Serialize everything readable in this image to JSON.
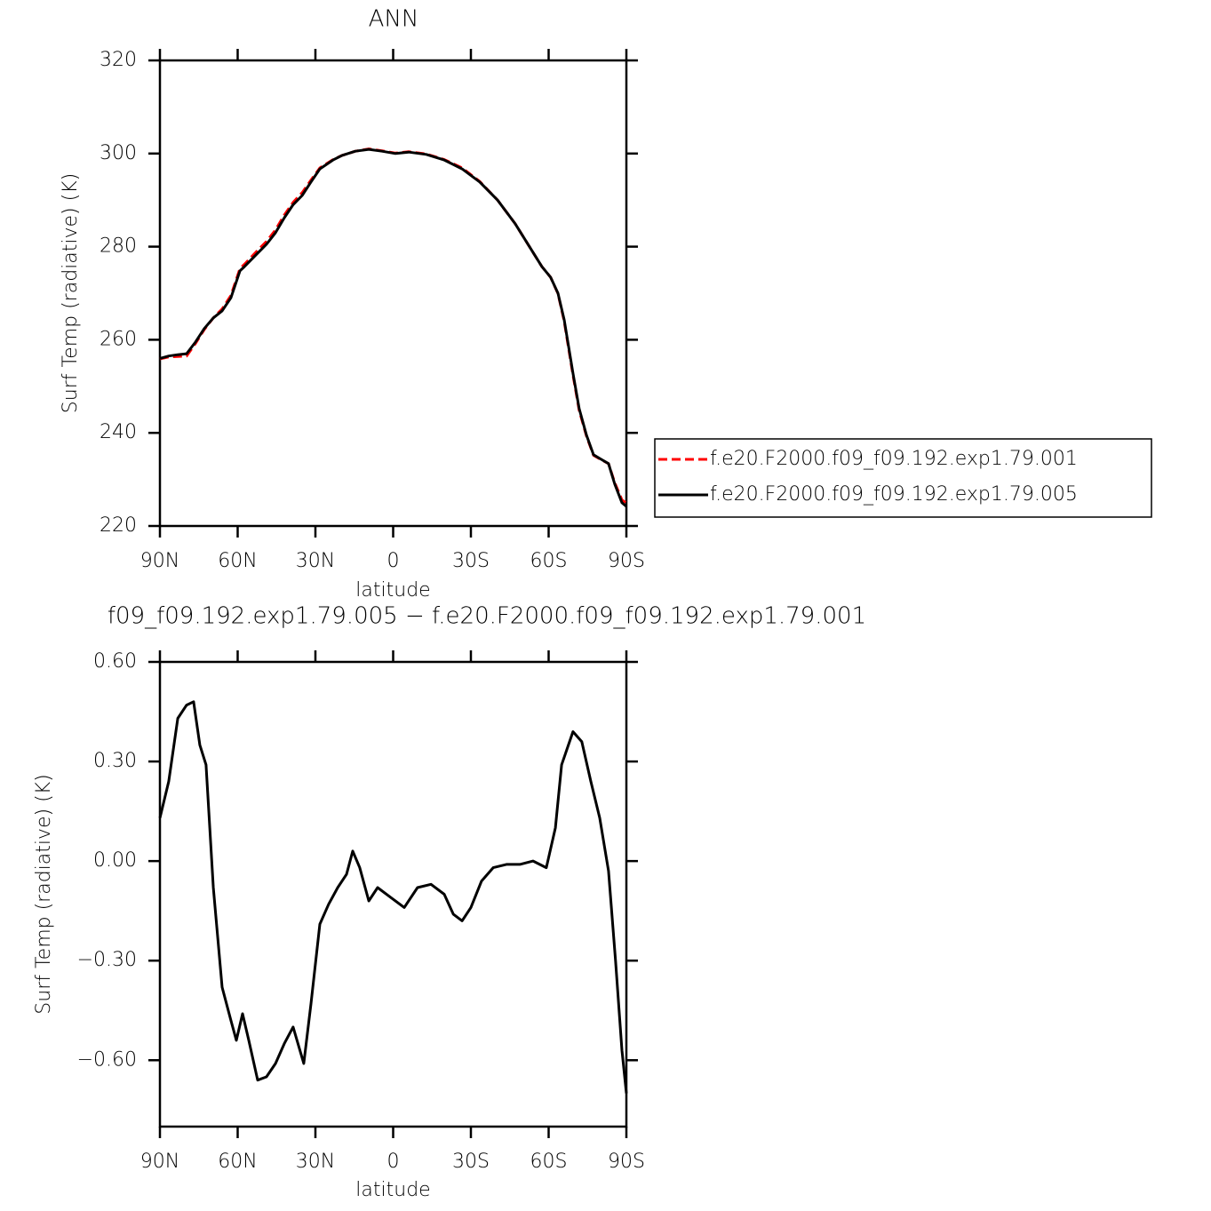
{
  "chart_data": [
    {
      "type": "line",
      "title": "ANN",
      "x_label": "latitude",
      "y_label": "Surf Temp (radiative) (K)",
      "xlim": [
        90,
        -90
      ],
      "ylim": [
        220,
        320
      ],
      "xticks": [
        {
          "value": 90,
          "label": "90N"
        },
        {
          "value": 60,
          "label": "60N"
        },
        {
          "value": 30,
          "label": "30N"
        },
        0,
        {
          "value": -30,
          "label": "30S"
        },
        {
          "value": -60,
          "label": "60S"
        },
        {
          "value": -90,
          "label": "90S"
        }
      ],
      "yticks": [
        220,
        240,
        260,
        280,
        300,
        320
      ],
      "x": [
        90,
        86.6,
        83.1,
        79.7,
        76.3,
        72.9,
        69.4,
        66,
        62.6,
        59.1,
        57.4,
        52.3,
        48.9,
        45.4,
        42,
        38.6,
        35.1,
        31.7,
        28.3,
        23.2,
        19.7,
        14.6,
        9.4,
        4.3,
        -0.9,
        -6,
        -12.8,
        -19.7,
        -26.6,
        -33.4,
        -40.3,
        -47.1,
        -57.4,
        -60.8,
        -63.6,
        -66,
        -67.7,
        -69.4,
        -71.8,
        -74.6,
        -77.3,
        -79.7,
        -83.1,
        -85.5,
        -88.3,
        -90
      ],
      "series": [
        {
          "name": "f.e20.F2000.f09_f09.192.exp1.79.001",
          "color": "#ff0000",
          "style": "dashed",
          "values": [
            255.9,
            256.3,
            256.4,
            256.5,
            259.2,
            262.2,
            264.7,
            266.6,
            269.5,
            275.3,
            276.2,
            279.2,
            281.1,
            283.6,
            286.8,
            289.5,
            291.6,
            294.3,
            296.9,
            298.7,
            299.6,
            300.5,
            301,
            300.6,
            300.1,
            300.4,
            299.9,
            298.7,
            296.9,
            294,
            290,
            284.9,
            275.7,
            273.4,
            269.9,
            264,
            258.1,
            252.4,
            244.8,
            239.3,
            235.2,
            234.4,
            233.4,
            229.3,
            225.6,
            224.9
          ]
        },
        {
          "name": "f.e20.F2000.f09_f09.192.exp1.79.005",
          "color": "#000000",
          "style": "solid",
          "values": [
            256,
            256.5,
            256.8,
            257,
            259.5,
            262.4,
            264.7,
            266.2,
            269,
            274.8,
            275.7,
            278.6,
            280.5,
            283,
            286.2,
            289,
            291,
            293.9,
            296.7,
            298.6,
            299.6,
            300.5,
            300.9,
            300.5,
            300,
            300.3,
            299.8,
            298.6,
            296.7,
            293.9,
            290,
            284.9,
            275.7,
            273.4,
            270,
            264.3,
            258.5,
            252.8,
            245.2,
            239.5,
            235.3,
            234.5,
            233.4,
            229,
            225,
            224.2
          ]
        }
      ]
    },
    {
      "type": "line",
      "title": "f09_f09.192.exp1.79.005 − f.e20.F2000.f09_f09.192.exp1.79.001",
      "x_label": "latitude",
      "y_label": "Surf Temp (radiative) (K)",
      "xlim": [
        90,
        -90
      ],
      "ylim": [
        -0.8,
        0.6
      ],
      "xticks": [
        {
          "value": 90,
          "label": "90N"
        },
        {
          "value": 60,
          "label": "60N"
        },
        {
          "value": 30,
          "label": "30N"
        },
        0,
        {
          "value": -30,
          "label": "30S"
        },
        {
          "value": -60,
          "label": "60S"
        },
        {
          "value": -90,
          "label": "90S"
        }
      ],
      "yticks": [
        {
          "value": -0.6,
          "label": "−0.60"
        },
        {
          "value": -0.3,
          "label": "−0.30"
        },
        {
          "value": 0,
          "label": "0.00"
        },
        {
          "value": 0.3,
          "label": "0.30"
        },
        {
          "value": 0.6,
          "label": "0.60"
        }
      ],
      "x": [
        90,
        86.6,
        83.1,
        79.7,
        77,
        74.6,
        72.2,
        69.4,
        66,
        62.6,
        60.5,
        58.1,
        55.7,
        52.3,
        48.9,
        45.4,
        42,
        38.6,
        34.5,
        31.7,
        28.3,
        24.9,
        21.4,
        18,
        15.6,
        12.9,
        9.4,
        6,
        0.9,
        -4.3,
        -9.4,
        -14.6,
        -19.7,
        -23.2,
        -26.6,
        -30,
        -34.1,
        -38.6,
        -43.7,
        -48.9,
        -54,
        -59.1,
        -62.6,
        -65,
        -69.4,
        -72.8,
        -76.3,
        -79.7,
        -83.1,
        -85.8,
        -88.3,
        -90
      ],
      "series": [
        {
          "color": "#000000",
          "style": "solid",
          "values": [
            0.13,
            0.24,
            0.43,
            0.47,
            0.48,
            0.35,
            0.29,
            -0.08,
            -0.38,
            -0.48,
            -0.54,
            -0.46,
            -0.54,
            -0.66,
            -0.65,
            -0.61,
            -0.55,
            -0.5,
            -0.61,
            -0.43,
            -0.19,
            -0.13,
            -0.08,
            -0.04,
            0.03,
            -0.02,
            -0.12,
            -0.08,
            -0.11,
            -0.14,
            -0.08,
            -0.07,
            -0.1,
            -0.16,
            -0.18,
            -0.14,
            -0.06,
            -0.02,
            -0.01,
            -0.01,
            0,
            -0.02,
            0.1,
            0.29,
            0.39,
            0.36,
            0.24,
            0.13,
            -0.03,
            -0.3,
            -0.57,
            -0.7
          ]
        }
      ]
    }
  ]
}
